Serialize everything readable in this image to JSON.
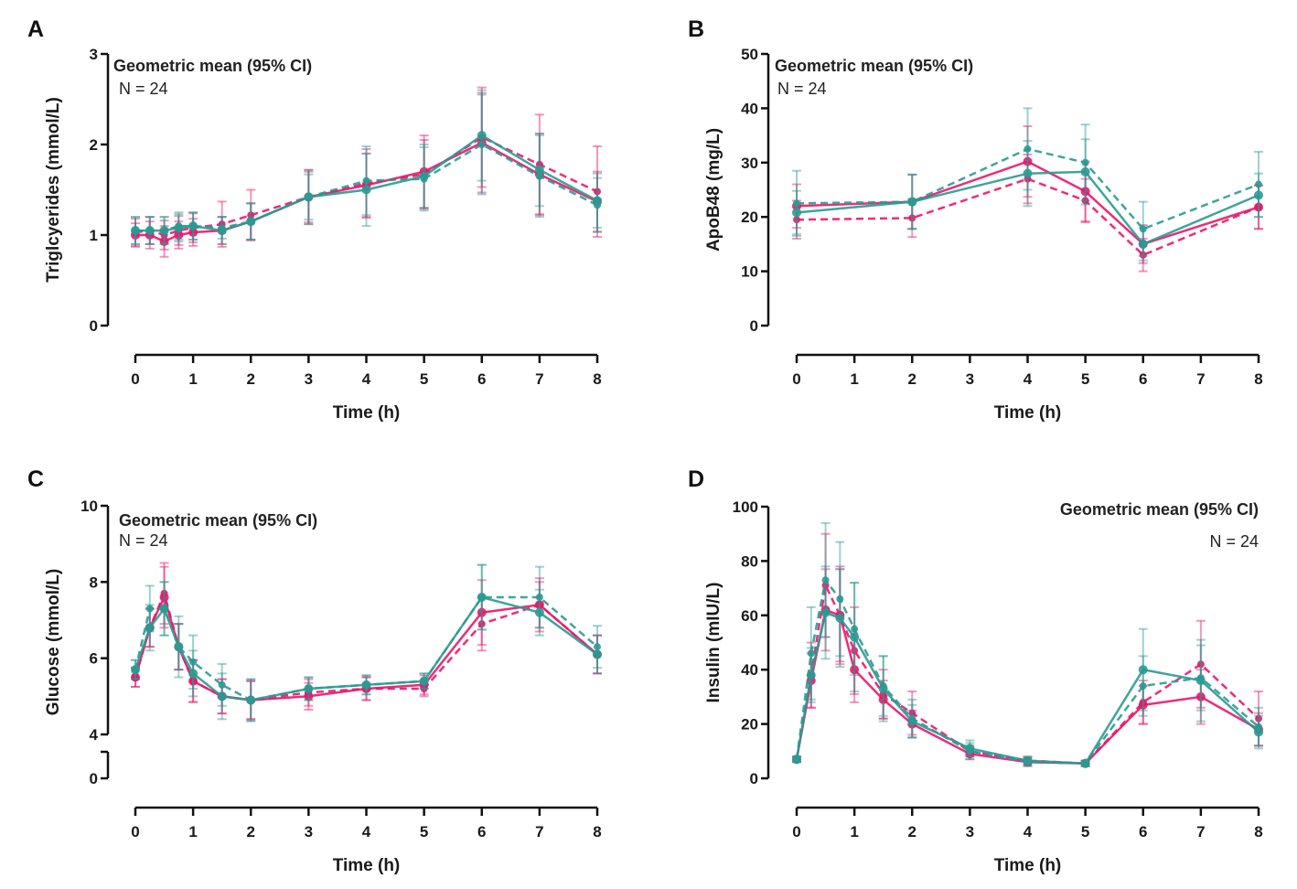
{
  "colors": {
    "pink": "#e8176a",
    "teal": "#2a9a92"
  },
  "chart_data": [
    {
      "panel": "A",
      "type": "line",
      "annotation": "Geometric mean (95% CI)",
      "n_label": "N = 24",
      "xlabel": "Time (h)",
      "ylabel": "Triglcyerides (mmol/L)",
      "xlim": [
        0,
        8
      ],
      "ylim": [
        0,
        3
      ],
      "xticks": [
        "0",
        "1",
        "2",
        "3",
        "4",
        "5",
        "6",
        "7",
        "8"
      ],
      "yticks": [
        "0",
        "1",
        "2",
        "3"
      ],
      "x": [
        0,
        0.25,
        0.5,
        0.75,
        1,
        1.5,
        2,
        3,
        4,
        5,
        6,
        7,
        8
      ],
      "series": [
        {
          "color": "pink",
          "dash": false,
          "values": [
            1.0,
            1.0,
            0.93,
            1.0,
            1.03,
            1.05,
            1.15,
            1.42,
            1.55,
            1.7,
            2.02,
            1.67,
            1.37
          ],
          "err": [
            0.13,
            0.15,
            0.17,
            0.15,
            0.15,
            0.15,
            0.2,
            0.28,
            0.35,
            0.4,
            0.55,
            0.45,
            0.33
          ]
        },
        {
          "color": "pink",
          "dash": true,
          "values": [
            1.03,
            1.05,
            1.0,
            1.05,
            1.08,
            1.12,
            1.22,
            1.42,
            1.57,
            1.67,
            2.08,
            1.78,
            1.48
          ],
          "err": [
            0.15,
            0.15,
            0.16,
            0.16,
            0.16,
            0.25,
            0.28,
            0.3,
            0.38,
            0.38,
            0.55,
            0.55,
            0.5
          ]
        },
        {
          "color": "teal",
          "dash": false,
          "values": [
            1.05,
            1.05,
            1.05,
            1.08,
            1.1,
            1.05,
            1.15,
            1.42,
            1.5,
            1.65,
            2.1,
            1.72,
            1.38
          ],
          "err": [
            0.15,
            0.15,
            0.15,
            0.15,
            0.15,
            0.15,
            0.2,
            0.25,
            0.4,
            0.35,
            0.5,
            0.4,
            0.3
          ]
        },
        {
          "color": "teal",
          "dash": true,
          "values": [
            1.05,
            1.05,
            1.05,
            1.1,
            1.1,
            1.08,
            1.15,
            1.42,
            1.6,
            1.62,
            2.0,
            1.65,
            1.33
          ],
          "err": [
            0.15,
            0.15,
            0.15,
            0.15,
            0.15,
            0.12,
            0.2,
            0.3,
            0.38,
            0.35,
            0.55,
            0.45,
            0.3
          ]
        }
      ]
    },
    {
      "panel": "B",
      "type": "line",
      "annotation": "Geometric mean (95% CI)",
      "n_label": "N = 24",
      "xlabel": "Time (h)",
      "ylabel": "ApoB48 (mg/L)",
      "xlim": [
        0,
        8
      ],
      "ylim": [
        0,
        50
      ],
      "xticks": [
        "0",
        "1",
        "2",
        "3",
        "4",
        "5",
        "6",
        "7",
        "8"
      ],
      "yticks": [
        "0",
        "10",
        "20",
        "30",
        "40",
        "50"
      ],
      "x": [
        0,
        2,
        4,
        5,
        6,
        8
      ],
      "series": [
        {
          "color": "pink",
          "dash": false,
          "values": [
            22,
            22.8,
            30.2,
            24.7,
            15,
            21.8
          ],
          "err": [
            4,
            5,
            6.5,
            5.5,
            3.5,
            4
          ]
        },
        {
          "color": "pink",
          "dash": true,
          "values": [
            19.5,
            19.8,
            27,
            23,
            13,
            21.8
          ],
          "err": [
            3.5,
            3.5,
            4.5,
            4,
            3,
            4
          ]
        },
        {
          "color": "teal",
          "dash": false,
          "values": [
            20.8,
            22.8,
            28,
            28.3,
            15,
            24
          ],
          "err": [
            4,
            5,
            6,
            6,
            3,
            4
          ]
        },
        {
          "color": "teal",
          "dash": true,
          "values": [
            22.5,
            22.8,
            32.5,
            30,
            17.8,
            26
          ],
          "err": [
            6,
            5,
            7.5,
            7,
            5,
            6
          ]
        }
      ]
    },
    {
      "panel": "C",
      "type": "line",
      "annotation": "Geometric mean (95% CI)",
      "n_label": "N = 24",
      "xlabel": "Time (h)",
      "ylabel": "Glucose (mmol/L)",
      "xlim": [
        0,
        8
      ],
      "ylim": [
        0,
        10
      ],
      "axis_break": [
        0,
        4
      ],
      "xticks": [
        "0",
        "1",
        "2",
        "3",
        "4",
        "5",
        "6",
        "7",
        "8"
      ],
      "yticks": [
        "0",
        "4",
        "6",
        "8",
        "10"
      ],
      "x": [
        0,
        0.25,
        0.5,
        0.75,
        1,
        1.5,
        2,
        3,
        4,
        5,
        6,
        7,
        8
      ],
      "series": [
        {
          "color": "pink",
          "dash": false,
          "values": [
            5.5,
            6.8,
            7.6,
            6.3,
            5.4,
            5.0,
            4.9,
            5.0,
            5.2,
            5.3,
            7.2,
            7.4,
            6.1
          ],
          "err": [
            0.25,
            0.5,
            0.8,
            0.6,
            0.55,
            0.45,
            0.5,
            0.35,
            0.3,
            0.25,
            0.85,
            0.7,
            0.5
          ]
        },
        {
          "color": "pink",
          "dash": true,
          "values": [
            5.5,
            6.8,
            7.7,
            6.3,
            5.4,
            5.0,
            4.9,
            5.1,
            5.2,
            5.2,
            6.9,
            7.4,
            6.1
          ],
          "err": [
            0.25,
            0.5,
            0.8,
            0.6,
            0.55,
            0.45,
            0.5,
            0.35,
            0.3,
            0.2,
            0.7,
            0.6,
            0.5
          ]
        },
        {
          "color": "teal",
          "dash": false,
          "values": [
            5.7,
            6.8,
            7.3,
            6.3,
            5.6,
            5.0,
            4.9,
            5.2,
            5.3,
            5.4,
            7.6,
            7.2,
            6.1
          ],
          "err": [
            0.25,
            0.6,
            0.7,
            0.6,
            0.6,
            0.6,
            0.55,
            0.3,
            0.25,
            0.2,
            0.85,
            0.6,
            0.5
          ]
        },
        {
          "color": "teal",
          "dash": true,
          "values": [
            5.7,
            7.3,
            7.3,
            6.3,
            5.9,
            5.3,
            4.9,
            5.2,
            5.3,
            5.4,
            7.6,
            7.6,
            6.3
          ],
          "err": [
            0.25,
            0.6,
            0.7,
            0.8,
            0.7,
            0.55,
            0.55,
            0.3,
            0.25,
            0.2,
            0.85,
            0.8,
            0.55
          ]
        }
      ]
    },
    {
      "panel": "D",
      "type": "line",
      "annotation": "Geometric mean (95% CI)",
      "n_label": "N = 24",
      "xlabel": "Time (h)",
      "ylabel": "Insulin (mIU/L)",
      "xlim": [
        0,
        8
      ],
      "ylim": [
        0,
        100
      ],
      "xticks": [
        "0",
        "1",
        "2",
        "3",
        "4",
        "5",
        "6",
        "7",
        "8"
      ],
      "yticks": [
        "0",
        "20",
        "40",
        "60",
        "80",
        "100"
      ],
      "x": [
        0,
        0.25,
        0.5,
        0.75,
        1,
        1.5,
        2,
        3,
        4,
        5,
        6,
        7,
        8
      ],
      "series": [
        {
          "color": "pink",
          "dash": false,
          "values": [
            7,
            36,
            62,
            60,
            40,
            29,
            20,
            9,
            6,
            5.5,
            27,
            30,
            18
          ],
          "err": [
            1,
            10,
            15,
            17,
            12,
            7,
            5,
            2,
            1.5,
            1,
            7,
            10,
            6
          ]
        },
        {
          "color": "pink",
          "dash": true,
          "values": [
            7,
            38,
            71,
            60,
            47,
            31,
            24,
            10,
            6.5,
            5.5,
            28,
            42,
            22
          ],
          "err": [
            1,
            12,
            19,
            18,
            16,
            9,
            8,
            2,
            1.5,
            1,
            8,
            16,
            10
          ]
        },
        {
          "color": "teal",
          "dash": false,
          "values": [
            7,
            38,
            61,
            59,
            52,
            33,
            21,
            11,
            6.5,
            5.5,
            40,
            36,
            17
          ],
          "err": [
            1,
            10,
            17,
            18,
            20,
            12,
            6,
            3,
            1.5,
            1,
            15,
            15,
            6
          ]
        },
        {
          "color": "teal",
          "dash": true,
          "values": [
            7,
            46,
            73,
            66,
            55,
            34,
            22,
            10,
            6,
            5.5,
            34,
            37,
            19
          ],
          "err": [
            1,
            17,
            21,
            21,
            17,
            11,
            7,
            3,
            1.5,
            1,
            11,
            12,
            7
          ]
        }
      ]
    }
  ]
}
